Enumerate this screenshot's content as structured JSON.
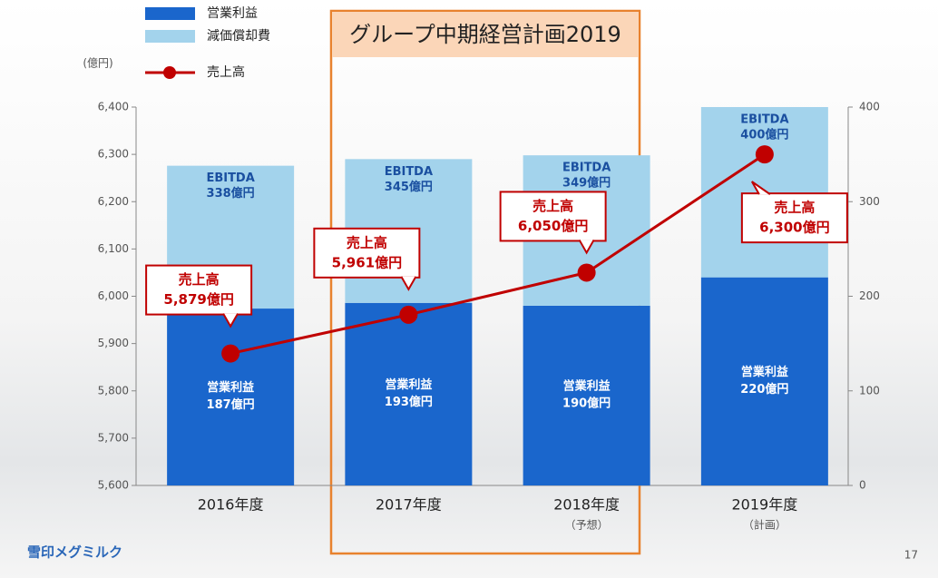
{
  "chart_data": {
    "type": "bar_line",
    "title": "グループ中期経営計画2019",
    "unit_label": "(億円)",
    "categories": [
      "2016年度",
      "2017年度",
      "2018年度",
      "2019年度"
    ],
    "category_notes": [
      null,
      null,
      "（予想）",
      "（計画）"
    ],
    "series": [
      {
        "name": "営業利益",
        "type": "bar",
        "axis": "y2",
        "color": "#1a66cc",
        "values": [
          187,
          193,
          190,
          220
        ],
        "value_labels": [
          "187億円",
          "193億円",
          "190億円",
          "220億円"
        ]
      },
      {
        "name": "減価償却費",
        "type": "bar",
        "axis": "y2",
        "color": "#a3d3ec",
        "values": [
          151,
          152,
          159,
          180
        ]
      },
      {
        "name": "売上高",
        "type": "line",
        "axis": "y",
        "color": "#c00000",
        "values": [
          5879,
          5961,
          6050,
          6300
        ],
        "value_labels": [
          "5,879億円",
          "5,961億円",
          "6,050億円",
          "6,300億円"
        ]
      }
    ],
    "ebitda": {
      "label": "EBITDA",
      "values": [
        338,
        345,
        349,
        400
      ],
      "value_labels": [
        "338億円",
        "345億円",
        "349億円",
        "400億円"
      ]
    },
    "ylim": [
      5600,
      6400
    ],
    "yticks": [
      {
        "value": 5600,
        "label": "5,600"
      },
      {
        "value": 5700,
        "label": "5,700"
      },
      {
        "value": 5800,
        "label": "5,800"
      },
      {
        "value": 5900,
        "label": "5,900"
      },
      {
        "value": 6000,
        "label": "6,000"
      },
      {
        "value": 6100,
        "label": "6,100"
      },
      {
        "value": 6200,
        "label": "6,200"
      },
      {
        "value": 6300,
        "label": "6,300"
      },
      {
        "value": 6400,
        "label": "6,400"
      }
    ],
    "y2lim": [
      0,
      400
    ],
    "y2ticks": [
      0,
      100,
      200,
      300,
      400
    ],
    "footer": {
      "logo": "雪印メグミルク",
      "page": "17"
    }
  }
}
